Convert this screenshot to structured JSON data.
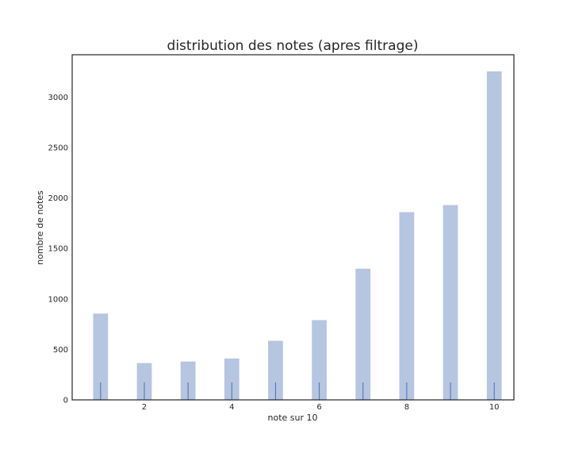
{
  "chart_data": {
    "type": "bar",
    "title": "distribution des notes (apres filtrage)",
    "xlabel": "note sur 10",
    "ylabel": "nombre de notes",
    "x": [
      1,
      2,
      3,
      4,
      5,
      6,
      7,
      8,
      9,
      10
    ],
    "values": [
      855,
      365,
      380,
      410,
      585,
      790,
      1300,
      1860,
      1930,
      3255
    ],
    "xticks": [
      2,
      4,
      6,
      8,
      10
    ],
    "yticks": [
      0,
      500,
      1000,
      1500,
      2000,
      2500,
      3000
    ],
    "xlim": [
      0.35,
      10.45
    ],
    "ylim": [
      0,
      3420
    ],
    "rug": [
      1,
      2,
      3,
      4,
      5,
      6,
      7,
      8,
      9,
      10
    ],
    "grid": false,
    "colors": {
      "bar": "#b6c5e0",
      "rug": "#4c6fb0",
      "frame": "#262626"
    }
  }
}
